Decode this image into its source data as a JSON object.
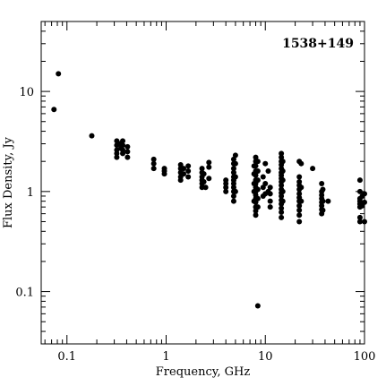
{
  "chart_data": {
    "type": "scatter",
    "annotation": "1538+149",
    "xlabel": "Frequency, GHz",
    "ylabel": "Flux Density, Jy",
    "xscale": "log",
    "yscale": "log",
    "xlim": [
      0.055,
      100
    ],
    "ylim": [
      0.03,
      50
    ],
    "grid": false,
    "legend": "none",
    "x_tick_labels": [
      {
        "value": 0.1,
        "label": "0.1"
      },
      {
        "value": 1,
        "label": "1"
      },
      {
        "value": 10,
        "label": "10"
      },
      {
        "value": 100,
        "label": "100"
      }
    ],
    "y_tick_labels": [
      {
        "value": 0.1,
        "label": "0.1"
      },
      {
        "value": 1,
        "label": "1"
      },
      {
        "value": 10,
        "label": "10"
      }
    ],
    "points": [
      [
        0.074,
        6.6
      ],
      [
        0.082,
        15.0
      ],
      [
        0.178,
        3.6
      ],
      [
        0.318,
        3.2
      ],
      [
        0.318,
        2.9
      ],
      [
        0.318,
        2.6
      ],
      [
        0.318,
        2.4
      ],
      [
        0.318,
        2.2
      ],
      [
        0.34,
        3.0
      ],
      [
        0.35,
        2.7
      ],
      [
        0.365,
        3.2
      ],
      [
        0.365,
        2.9
      ],
      [
        0.365,
        2.6
      ],
      [
        0.365,
        2.4
      ],
      [
        0.408,
        2.8
      ],
      [
        0.408,
        2.5
      ],
      [
        0.408,
        2.2
      ],
      [
        0.75,
        2.1
      ],
      [
        0.75,
        1.9
      ],
      [
        0.75,
        1.7
      ],
      [
        0.96,
        1.7
      ],
      [
        0.96,
        1.6
      ],
      [
        0.96,
        1.5
      ],
      [
        1.4,
        1.85
      ],
      [
        1.4,
        1.7
      ],
      [
        1.4,
        1.55
      ],
      [
        1.4,
        1.4
      ],
      [
        1.4,
        1.3
      ],
      [
        1.5,
        1.7
      ],
      [
        1.5,
        1.5
      ],
      [
        1.67,
        1.8
      ],
      [
        1.67,
        1.6
      ],
      [
        1.67,
        1.4
      ],
      [
        2.3,
        1.7
      ],
      [
        2.3,
        1.55
      ],
      [
        2.3,
        1.4
      ],
      [
        2.3,
        1.3
      ],
      [
        2.3,
        1.2
      ],
      [
        2.3,
        1.1
      ],
      [
        2.4,
        1.5
      ],
      [
        2.4,
        1.25
      ],
      [
        2.5,
        1.1
      ],
      [
        2.7,
        1.95
      ],
      [
        2.7,
        1.75
      ],
      [
        2.7,
        1.35
      ],
      [
        4.0,
        1.3
      ],
      [
        4.0,
        1.2
      ],
      [
        4.0,
        1.1
      ],
      [
        4.0,
        1.0
      ],
      [
        4.8,
        2.1
      ],
      [
        4.8,
        1.9
      ],
      [
        4.8,
        1.7
      ],
      [
        4.8,
        1.55
      ],
      [
        4.8,
        1.4
      ],
      [
        4.8,
        1.3
      ],
      [
        4.8,
        1.2
      ],
      [
        4.8,
        1.1
      ],
      [
        4.8,
        1.0
      ],
      [
        4.8,
        0.9
      ],
      [
        4.8,
        0.8
      ],
      [
        5.0,
        2.3
      ],
      [
        5.0,
        1.9
      ],
      [
        5.0,
        1.4
      ],
      [
        5.0,
        1.0
      ],
      [
        7.7,
        1.8
      ],
      [
        7.7,
        1.5
      ],
      [
        7.7,
        1.2
      ],
      [
        7.7,
        1.0
      ],
      [
        7.7,
        0.8
      ],
      [
        8.0,
        2.2
      ],
      [
        8.0,
        2.0
      ],
      [
        8.0,
        1.8
      ],
      [
        8.0,
        1.6
      ],
      [
        8.0,
        1.45
      ],
      [
        8.0,
        1.3
      ],
      [
        8.0,
        1.2
      ],
      [
        8.0,
        1.1
      ],
      [
        8.0,
        1.0
      ],
      [
        8.0,
        0.92
      ],
      [
        8.0,
        0.85
      ],
      [
        8.0,
        0.78
      ],
      [
        8.0,
        0.7
      ],
      [
        8.0,
        0.64
      ],
      [
        8.0,
        0.58
      ],
      [
        8.4,
        2.0
      ],
      [
        8.4,
        1.6
      ],
      [
        8.4,
        1.3
      ],
      [
        8.4,
        1.05
      ],
      [
        8.4,
        0.85
      ],
      [
        8.4,
        0.7
      ],
      [
        8.4,
        0.072
      ],
      [
        9.5,
        1.4
      ],
      [
        9.5,
        1.1
      ],
      [
        9.5,
        0.9
      ],
      [
        10.0,
        1.9
      ],
      [
        10.0,
        1.2
      ],
      [
        10.0,
        0.95
      ],
      [
        10.7,
        1.6
      ],
      [
        10.7,
        1.0
      ],
      [
        11.2,
        1.1
      ],
      [
        11.2,
        0.95
      ],
      [
        11.2,
        0.8
      ],
      [
        11.2,
        0.7
      ],
      [
        14.5,
        2.4
      ],
      [
        14.5,
        2.2
      ],
      [
        14.5,
        2.0
      ],
      [
        14.5,
        1.85
      ],
      [
        14.5,
        1.7
      ],
      [
        14.5,
        1.55
      ],
      [
        14.5,
        1.45
      ],
      [
        14.5,
        1.35
      ],
      [
        14.5,
        1.25
      ],
      [
        14.5,
        1.15
      ],
      [
        14.5,
        1.05
      ],
      [
        14.5,
        0.97
      ],
      [
        14.5,
        0.9
      ],
      [
        14.5,
        0.82
      ],
      [
        14.5,
        0.75
      ],
      [
        14.5,
        0.68
      ],
      [
        14.5,
        0.62
      ],
      [
        14.5,
        0.55
      ],
      [
        15.0,
        2.0
      ],
      [
        15.0,
        1.6
      ],
      [
        15.0,
        1.3
      ],
      [
        15.0,
        1.0
      ],
      [
        15.0,
        0.8
      ],
      [
        22.0,
        2.0
      ],
      [
        22.0,
        1.4
      ],
      [
        22.0,
        1.25
      ],
      [
        22.0,
        1.15
      ],
      [
        22.0,
        1.05
      ],
      [
        22.0,
        0.95
      ],
      [
        22.0,
        0.87
      ],
      [
        22.0,
        0.8
      ],
      [
        22.0,
        0.72
      ],
      [
        22.0,
        0.65
      ],
      [
        22.0,
        0.58
      ],
      [
        22.0,
        0.5
      ],
      [
        23.0,
        1.9
      ],
      [
        23.0,
        1.1
      ],
      [
        23.0,
        0.8
      ],
      [
        30.0,
        1.7
      ],
      [
        37.0,
        1.2
      ],
      [
        37.0,
        1.0
      ],
      [
        37.0,
        0.92
      ],
      [
        37.0,
        0.85
      ],
      [
        37.0,
        0.78
      ],
      [
        37.0,
        0.72
      ],
      [
        37.0,
        0.66
      ],
      [
        37.0,
        0.6
      ],
      [
        38.0,
        1.05
      ],
      [
        38.0,
        0.8
      ],
      [
        38.0,
        0.65
      ],
      [
        43.0,
        0.8
      ],
      [
        90.0,
        1.3
      ],
      [
        90.0,
        1.0
      ],
      [
        90.0,
        0.85
      ],
      [
        90.0,
        0.8
      ],
      [
        90.0,
        0.75
      ],
      [
        90.0,
        0.7
      ],
      [
        90.0,
        0.55
      ],
      [
        90.0,
        0.5
      ],
      [
        95.0,
        0.9
      ],
      [
        95.0,
        0.72
      ],
      [
        100.0,
        0.95
      ],
      [
        100.0,
        0.78
      ],
      [
        100.0,
        0.5
      ]
    ]
  }
}
